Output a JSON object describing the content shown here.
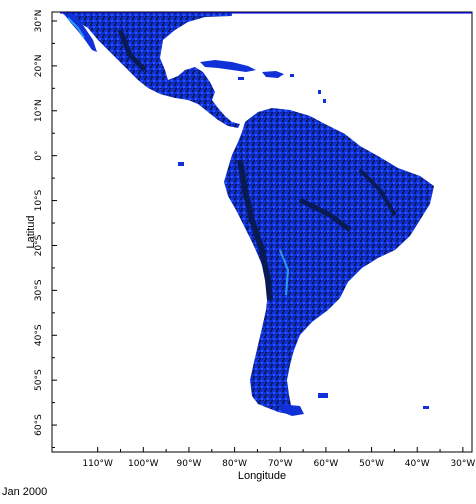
{
  "date_label": "Jan 2000",
  "x_axis": {
    "title": "Longitude",
    "ticks": [
      {
        "lon": -110,
        "label": "110°W"
      },
      {
        "lon": -100,
        "label": "100°W"
      },
      {
        "lon": -90,
        "label": "90°W"
      },
      {
        "lon": -80,
        "label": "80°W"
      },
      {
        "lon": -70,
        "label": "70°W"
      },
      {
        "lon": -60,
        "label": "60°W"
      },
      {
        "lon": -50,
        "label": "50°W"
      },
      {
        "lon": -40,
        "label": "40°W"
      },
      {
        "lon": -30,
        "label": "30°W"
      }
    ]
  },
  "y_axis": {
    "title": "Latitud",
    "ticks": [
      {
        "lat": 30,
        "label": "30°N"
      },
      {
        "lat": 20,
        "label": "20°N"
      },
      {
        "lat": 10,
        "label": "10°N"
      },
      {
        "lat": 0,
        "label": "0°"
      },
      {
        "lat": -10,
        "label": "10°S"
      },
      {
        "lat": -20,
        "label": "20°S"
      },
      {
        "lat": -30,
        "label": "30°S"
      },
      {
        "lat": -40,
        "label": "40°S"
      },
      {
        "lat": -50,
        "label": "50°S"
      },
      {
        "lat": -60,
        "label": "60°S"
      }
    ]
  },
  "map_extent": {
    "lon": [
      -120,
      -28
    ],
    "lat": [
      -66,
      32
    ]
  },
  "colors": {
    "land_dark": "#0a1a55",
    "land_mid": "#1030d8",
    "land_bright": "#2a55ff",
    "highlight": "#37c6ff",
    "frame": "#000000",
    "top_line": "#1a1aff"
  }
}
